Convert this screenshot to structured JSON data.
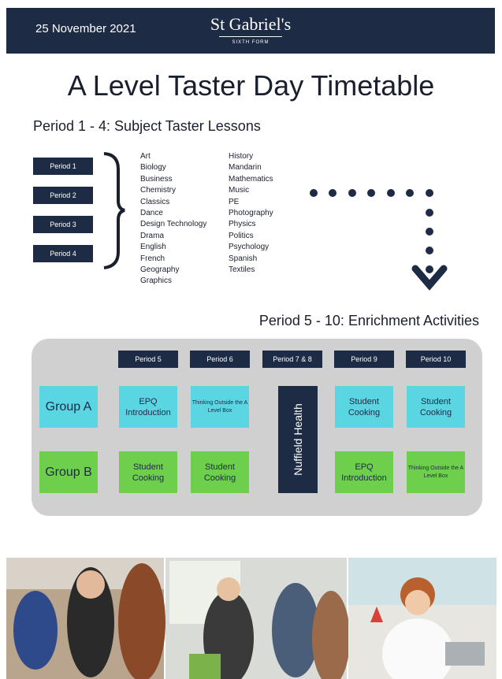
{
  "header": {
    "date": "25 November 2021",
    "logo": "St Gabriel's",
    "logo_sub": "SIXTH FORM"
  },
  "title": "A Level Taster Day Timetable",
  "taster": {
    "heading": "Period 1 - 4: Subject Taster Lessons",
    "periods": [
      "Period 1",
      "Period 2",
      "Period 3",
      "Period 4"
    ],
    "subjects_left": [
      "Art",
      "Biology",
      "Business",
      "Chemistry",
      "Classics",
      "Dance",
      "Design Technology",
      "Drama",
      "English",
      "French",
      "Geography",
      "Graphics"
    ],
    "subjects_right": [
      "History",
      "Mandarin",
      "Mathematics",
      "Music",
      "PE",
      "Photography",
      "Physics",
      "Politics",
      "Psychology",
      "Spanish",
      "Textiles"
    ]
  },
  "enrichment": {
    "heading": "Period 5 - 10: Enrichment Activities",
    "periods": [
      "Period 5",
      "Period 6",
      "Period 7 & 8",
      "Period 9",
      "Period 10"
    ],
    "shared": "Nuffield Health",
    "groups": [
      {
        "name": "Group A",
        "cells": [
          "EPQ Introduction",
          "Thinking Outside the A Level Box",
          "Student Cooking",
          "Student Cooking"
        ]
      },
      {
        "name": "Group B",
        "cells": [
          "Student Cooking",
          "Student Cooking",
          "EPQ Introduction",
          "Thinking Outside the A Level Box"
        ]
      }
    ]
  }
}
